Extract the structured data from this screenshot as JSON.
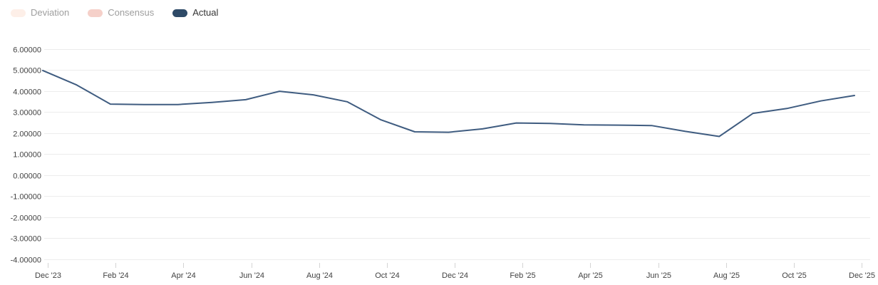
{
  "legend": {
    "items": [
      {
        "id": "deviation",
        "label": "Deviation",
        "swatch_color": "#fdefe8",
        "text_color": "#9e9e9e",
        "active": false
      },
      {
        "id": "consensus",
        "label": "Consensus",
        "swatch_color": "#f5d0c9",
        "text_color": "#9e9e9e",
        "active": false
      },
      {
        "id": "actual",
        "label": "Actual",
        "swatch_color": "#2e4a67",
        "text_color": "#333333",
        "active": true
      }
    ]
  },
  "chart_data": {
    "type": "line",
    "title": "",
    "xlabel": "",
    "ylabel": "",
    "x": [
      "Dec '23",
      "Jan '24",
      "Feb '24",
      "Mar '24",
      "Apr '24",
      "May '24",
      "Jun '24",
      "Jul '24",
      "Aug '24",
      "Sep '24",
      "Oct '24",
      "Nov '24",
      "Dec '24",
      "Jan '25",
      "Feb '25",
      "Mar '25",
      "Apr '25",
      "May '25",
      "Jun '25",
      "Jul '25",
      "Aug '25",
      "Sep '25",
      "Oct '25",
      "Nov '25",
      "Dec '25"
    ],
    "series": [
      {
        "name": "Actual",
        "color": "#3f5c80",
        "values": [
          4.97,
          4.28,
          3.37,
          3.35,
          3.35,
          3.45,
          3.58,
          3.98,
          3.81,
          3.48,
          2.62,
          2.05,
          2.03,
          2.19,
          2.47,
          2.45,
          2.38,
          2.37,
          2.35,
          2.07,
          1.83,
          2.93,
          3.16,
          3.52,
          3.78
        ]
      }
    ],
    "hidden_series_names": [
      "Deviation",
      "Consensus"
    ],
    "x_tick_labels": [
      "Dec '23",
      "Feb '24",
      "Apr '24",
      "Jun '24",
      "Aug '24",
      "Oct '24",
      "Dec '24",
      "Feb '25",
      "Apr '25",
      "Jun '25",
      "Aug '25",
      "Oct '25",
      "Dec '25"
    ],
    "y_tick_labels": [
      "6.00000",
      "5.00000",
      "4.00000",
      "3.00000",
      "2.00000",
      "1.00000",
      "0.00000",
      "-1.00000",
      "-2.00000",
      "-3.00000",
      "-4.00000"
    ],
    "ylim": [
      -4,
      6
    ],
    "grid": true,
    "legend_position": "top-left",
    "colors": {
      "background": "#ffffff",
      "gridline": "#ececec",
      "tick_mark": "#d4d4d4",
      "axis_label": "#424242"
    }
  }
}
